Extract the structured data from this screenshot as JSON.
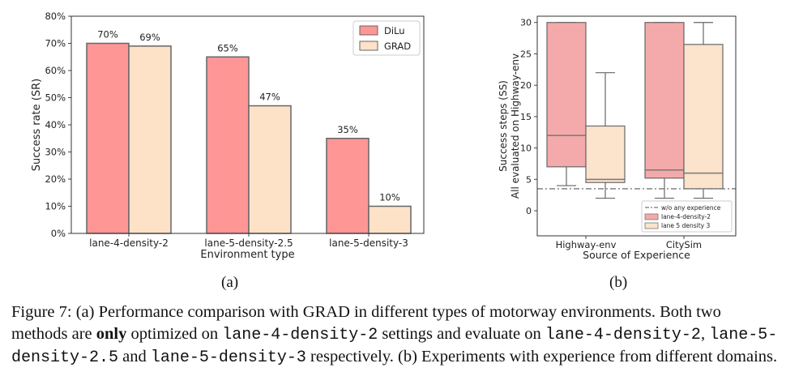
{
  "chart_data": [
    {
      "type": "bar",
      "ylabel": "Success rate (SR)",
      "xlabel": "Environment type",
      "categories": [
        "lane-4-density-2",
        "lane-5-density-2.5",
        "lane-5-density-3"
      ],
      "ylim": [
        0,
        80
      ],
      "yticks": [
        "0%",
        "10%",
        "20%",
        "30%",
        "40%",
        "50%",
        "60%",
        "70%",
        "80%"
      ],
      "legend_position": "top-right",
      "series": [
        {
          "name": "DiLu",
          "values": [
            70,
            65,
            35
          ],
          "labels": [
            "70%",
            "65%",
            "35%"
          ],
          "color": "#fe9696"
        },
        {
          "name": "GRAD",
          "values": [
            69,
            47,
            10
          ],
          "labels": [
            "69%",
            "47%",
            "10%"
          ],
          "color": "#fde2c8"
        }
      ]
    },
    {
      "type": "boxplot",
      "ylabel": "Success steps (SS)",
      "ylabel2": "All evaluated on Highway-env",
      "xlabel": "Source of Experience",
      "categories": [
        "Highway-env",
        "CitySim"
      ],
      "ylim": [
        -4,
        31
      ],
      "yticks": [
        "0",
        "5",
        "10",
        "15",
        "20",
        "25",
        "30"
      ],
      "legend_position": "bottom-right",
      "reference_line": {
        "name": "w/o any experience",
        "value": 3.5
      },
      "series": [
        {
          "name": "lane-4-density-2",
          "color": "#f4aaaa",
          "boxes": [
            {
              "whisker_low": 4,
              "q1": 7,
              "median": 12,
              "q3": 30,
              "whisker_high": 30
            },
            {
              "whisker_low": 2,
              "q1": 5.2,
              "median": 6.5,
              "q3": 30,
              "whisker_high": 30
            }
          ]
        },
        {
          "name": "lane 5 density 3",
          "color": "#fbe3cc",
          "boxes": [
            {
              "whisker_low": 2,
              "q1": 4.5,
              "median": 5,
              "q3": 13.5,
              "whisker_high": 22
            },
            {
              "whisker_low": 2,
              "q1": 3.5,
              "median": 6,
              "q3": 26.5,
              "whisker_high": 30
            }
          ]
        }
      ]
    }
  ],
  "subcaptions": {
    "a": "(a)",
    "b": "(b)"
  },
  "caption": {
    "part1": "Figure 7:  (a) Performance comparison with GRAD in different types of motorway environments. Both two methods are ",
    "bold": "only",
    "part2": " optimized on ",
    "code1": "lane-4-density-2",
    "part3": " settings and evaluate on ",
    "code2": "lane-4-density-2",
    "part4": ", ",
    "code3": "lane-5-density-2.5",
    "part5": " and ",
    "code4": "lane-5-density-3",
    "part6": " respectively. (b) Experiments with experience from different domains."
  }
}
